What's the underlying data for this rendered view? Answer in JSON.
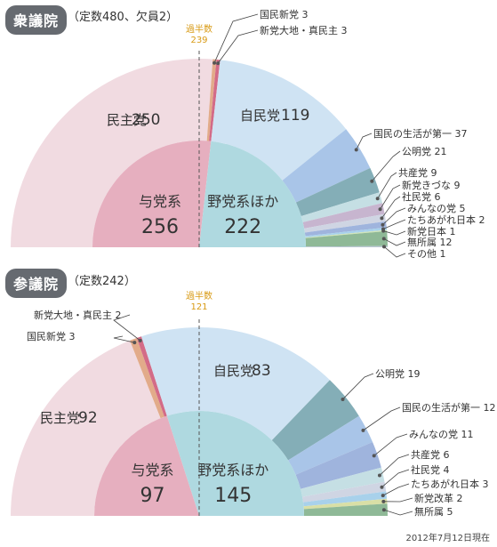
{
  "footnote": "2012年7月12日現在",
  "colors": {
    "minshu_outer": "#f1dbe1",
    "minshu_inner": "#e6afbf",
    "kokumin": "#e2ab8a",
    "daichi": "#d36b87",
    "jimin": "#cfe3f3",
    "opposition_inner": "#afd9e0",
    "seikatsu": "#a9c5e8",
    "komei": "#84aeb7",
    "kyosan": "#c5dfe4",
    "kizuna": "#c7b5cf",
    "shamin": "#cfd5e3",
    "minna": "#9fb4dd",
    "tachiagare": "#a8d1eb",
    "kaikaku": "#d9dfa6",
    "nippon": "#cfe4b5",
    "mushozoku": "#8fb997",
    "sonota": "#b9c6d3",
    "majority_line": "#555555",
    "majority_text": "#d89a14",
    "label_line": "#444444"
  },
  "chart_data": [
    {
      "type": "pie",
      "house": "衆議院",
      "subtitle": "（定数480、欠員2）",
      "majority": {
        "label": "過半数",
        "value": "239"
      },
      "series_order": "counterclockwise from left (ruling parties) to right (opposition)",
      "slices": [
        {
          "name": "民主党",
          "value": 250,
          "color": "minshu_outer",
          "label_style": "inside"
        },
        {
          "name": "国民新党",
          "value": 3,
          "color": "kokumin",
          "label_style": "callout"
        },
        {
          "name": "新党大地・真民主",
          "value": 3,
          "color": "daichi",
          "label_style": "callout"
        },
        {
          "name": "自民党",
          "value": 119,
          "color": "jimin",
          "label_style": "inside"
        },
        {
          "name": "国民の生活が第一",
          "value": 37,
          "color": "seikatsu",
          "label_style": "callout"
        },
        {
          "name": "公明党",
          "value": 21,
          "color": "komei",
          "label_style": "callout"
        },
        {
          "name": "共産党",
          "value": 9,
          "color": "kyosan",
          "label_style": "callout"
        },
        {
          "name": "新党きづな",
          "value": 9,
          "color": "kizuna",
          "label_style": "callout"
        },
        {
          "name": "社民党",
          "value": 6,
          "color": "shamin",
          "label_style": "callout"
        },
        {
          "name": "みんなの党",
          "value": 5,
          "color": "minna",
          "label_style": "callout"
        },
        {
          "name": "たちあがれ日本",
          "value": 2,
          "color": "tachiagare",
          "label_style": "callout"
        },
        {
          "name": "新党日本",
          "value": 1,
          "color": "nippon",
          "label_style": "callout"
        },
        {
          "name": "無所属",
          "value": 12,
          "color": "mushozoku",
          "label_style": "callout"
        },
        {
          "name": "その他",
          "value": 1,
          "color": "sonota",
          "label_style": "callout"
        }
      ],
      "groups": [
        {
          "name": "与党系",
          "value": 256,
          "color": "minshu_inner"
        },
        {
          "name": "野党系ほか",
          "value": 222,
          "color": "opposition_inner"
        }
      ]
    },
    {
      "type": "pie",
      "house": "参議院",
      "subtitle": "（定数242）",
      "majority": {
        "label": "過半数",
        "value": "121"
      },
      "series_order": "counterclockwise from left (ruling parties) to right (opposition)",
      "slices": [
        {
          "name": "民主党",
          "value": 92,
          "color": "minshu_outer",
          "label_style": "inside"
        },
        {
          "name": "国民新党",
          "value": 3,
          "color": "kokumin",
          "label_style": "callout"
        },
        {
          "name": "新党大地・真民主",
          "value": 2,
          "color": "daichi",
          "label_style": "callout"
        },
        {
          "name": "自民党",
          "value": 83,
          "color": "jimin",
          "label_style": "inside"
        },
        {
          "name": "公明党",
          "value": 19,
          "color": "komei",
          "label_style": "callout"
        },
        {
          "name": "国民の生活が第一",
          "value": 12,
          "color": "seikatsu",
          "label_style": "callout"
        },
        {
          "name": "みんなの党",
          "value": 11,
          "color": "minna",
          "label_style": "callout"
        },
        {
          "name": "共産党",
          "value": 6,
          "color": "kyosan",
          "label_style": "callout"
        },
        {
          "name": "社民党",
          "value": 4,
          "color": "shamin",
          "label_style": "callout"
        },
        {
          "name": "たちあがれ日本",
          "value": 3,
          "color": "tachiagare",
          "label_style": "callout"
        },
        {
          "name": "新党改革",
          "value": 2,
          "color": "kaikaku",
          "label_style": "callout"
        },
        {
          "name": "無所属",
          "value": 5,
          "color": "mushozoku",
          "label_style": "callout"
        }
      ],
      "groups": [
        {
          "name": "与党系",
          "value": 97,
          "color": "minshu_inner"
        },
        {
          "name": "野党系ほか",
          "value": 145,
          "color": "opposition_inner"
        }
      ]
    }
  ]
}
